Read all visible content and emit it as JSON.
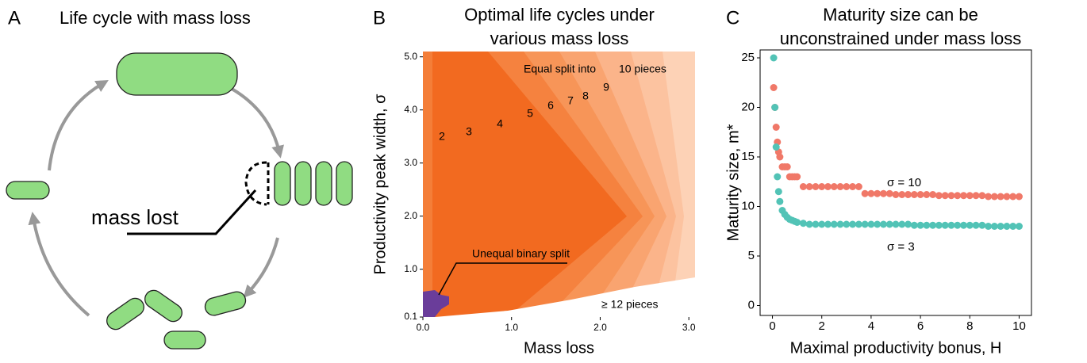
{
  "diagram": {
    "label": "A",
    "title": "Life cycle with mass loss",
    "annotation": "mass lost"
  },
  "chart_data": [
    {
      "type": "heatmap",
      "panel": "B",
      "title": [
        "Optimal life cycles under",
        "various mass loss"
      ],
      "x_label": "Mass loss",
      "y_label": "Productivity peak width, σ",
      "xlim": [
        0,
        3.07
      ],
      "ylim": [
        0.1,
        5.1
      ],
      "xticks": [
        {
          "value": 0,
          "label": "0.0"
        },
        {
          "value": 1,
          "label": "1.0"
        },
        {
          "value": 2,
          "label": "2.0"
        },
        {
          "value": 3,
          "label": "3.0"
        }
      ],
      "yticks": [
        {
          "value": 0.1,
          "label": "0.1"
        },
        {
          "value": 1,
          "label": "1.0"
        },
        {
          "value": 2,
          "label": "2.0"
        },
        {
          "value": 3,
          "label": "3.0"
        },
        {
          "value": 4,
          "label": "4.0"
        },
        {
          "value": 5,
          "label": "5.0"
        }
      ],
      "annotations": [
        "Equal split into",
        "10 pieces",
        "2",
        "3",
        "4",
        "5",
        "6",
        "7",
        "8",
        "9",
        "Unequal binary split",
        "≥ 12 pieces"
      ]
    },
    {
      "type": "scatter",
      "panel": "C",
      "title": [
        "Maturity size can be",
        "unconstrained under mass loss"
      ],
      "x_label": "Maximal productivity bonus, H",
      "y_label": "Maturity size, m*",
      "xlim": [
        -0.5,
        10.5
      ],
      "ylim": [
        -1,
        25.8
      ],
      "xticks": [
        0,
        2,
        4,
        6,
        8,
        10
      ],
      "yticks": [
        0,
        5,
        10,
        15,
        20,
        25
      ],
      "x": [
        0.05,
        0.1,
        0.15,
        0.2,
        0.25,
        0.3,
        0.4,
        0.5,
        0.6,
        0.7,
        0.8,
        0.9,
        1.0,
        1.25,
        1.5,
        1.75,
        2.0,
        2.25,
        2.5,
        2.75,
        3.0,
        3.25,
        3.5,
        3.75,
        4.0,
        4.25,
        4.5,
        4.75,
        5.0,
        5.25,
        5.5,
        5.75,
        6.0,
        6.25,
        6.5,
        6.75,
        7.0,
        7.25,
        7.5,
        7.75,
        8.0,
        8.25,
        8.5,
        8.75,
        9.0,
        9.25,
        9.5,
        9.75,
        10.0
      ],
      "series": [
        {
          "name": "σ = 10",
          "color": "#f07868",
          "values": [
            22,
            20,
            18,
            16.5,
            15.5,
            15,
            14,
            14,
            14,
            13,
            13,
            13,
            13,
            12,
            12,
            12,
            12,
            12,
            12,
            12,
            12,
            12,
            12,
            11.3,
            11.3,
            11.3,
            11.3,
            11.3,
            11.2,
            11.2,
            11.2,
            11.2,
            11.2,
            11.2,
            11.2,
            11.1,
            11.1,
            11.1,
            11.1,
            11.1,
            11.1,
            11.1,
            11.1,
            11.0,
            11.0,
            11.0,
            11.0,
            11.0,
            11.0
          ]
        },
        {
          "name": "σ = 3",
          "color": "#52c3b6",
          "values": [
            25,
            20,
            16,
            13,
            11.5,
            10.5,
            9.6,
            9.2,
            8.9,
            8.7,
            8.6,
            8.5,
            8.4,
            8.3,
            8.2,
            8.2,
            8.2,
            8.2,
            8.2,
            8.2,
            8.2,
            8.2,
            8.2,
            8.2,
            8.2,
            8.2,
            8.2,
            8.2,
            8.2,
            8.2,
            8.2,
            8.1,
            8.1,
            8.1,
            8.1,
            8.1,
            8.1,
            8.1,
            8.1,
            8.1,
            8.1,
            8.1,
            8.1,
            8.0,
            8.0,
            8.0,
            8.0,
            8.0,
            8.0
          ]
        }
      ]
    }
  ]
}
